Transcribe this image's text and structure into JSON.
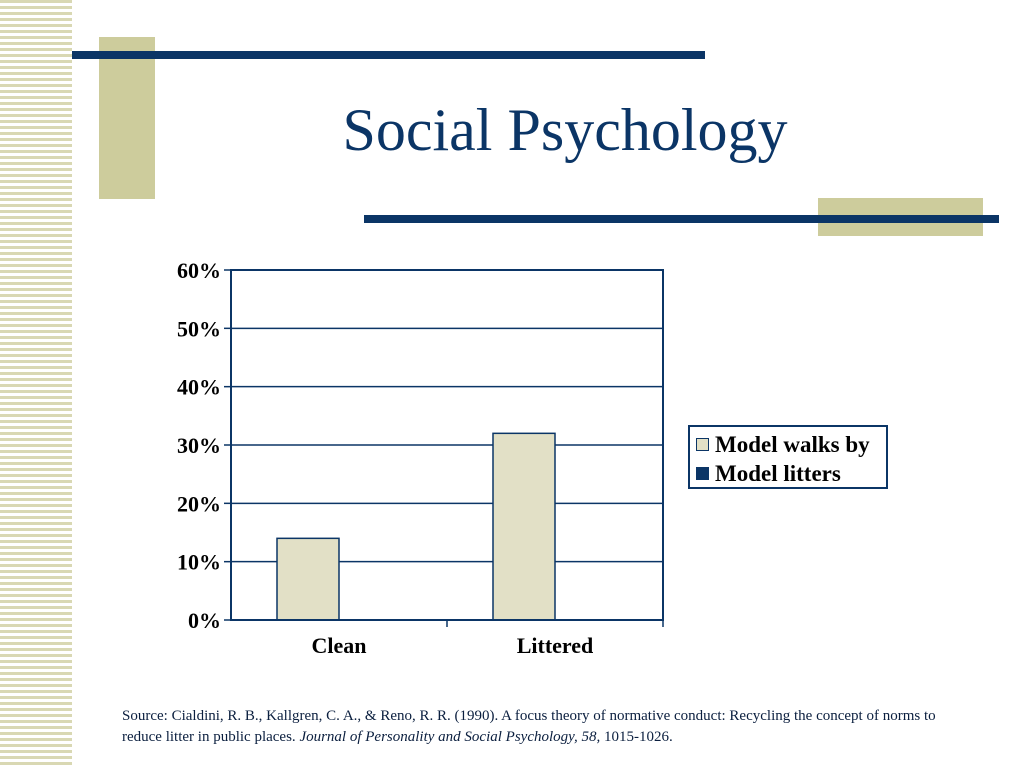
{
  "slide": {
    "title": "Social Psychology"
  },
  "colors": {
    "navy": "#0b3566",
    "khaki": "#cdcc9c",
    "bar_fill": "#e2e0c6",
    "stripe": "#d9d8b3"
  },
  "chart_data": {
    "type": "bar",
    "categories": [
      "Clean",
      "Littered"
    ],
    "series": [
      {
        "name": "Model walks by",
        "values": [
          14,
          32
        ],
        "color": "#e2e0c6"
      },
      {
        "name": "Model litters",
        "values": [
          0,
          0
        ],
        "color": "#0b3566"
      }
    ],
    "y_ticks": [
      "0%",
      "10%",
      "20%",
      "30%",
      "40%",
      "50%",
      "60%"
    ],
    "ylim": [
      0,
      60
    ],
    "unit": "%",
    "grid": true,
    "legend_position": "right"
  },
  "source": {
    "text": "Source: Cialdini, R. B., Kallgren, C. A., & Reno, R. R. (1990). A focus theory of normative conduct: Recycling the concept of norms to reduce litter in public places. ",
    "journal": "Journal of Personality and Social Psychology, 58,",
    "pages": " 1015-1026."
  }
}
